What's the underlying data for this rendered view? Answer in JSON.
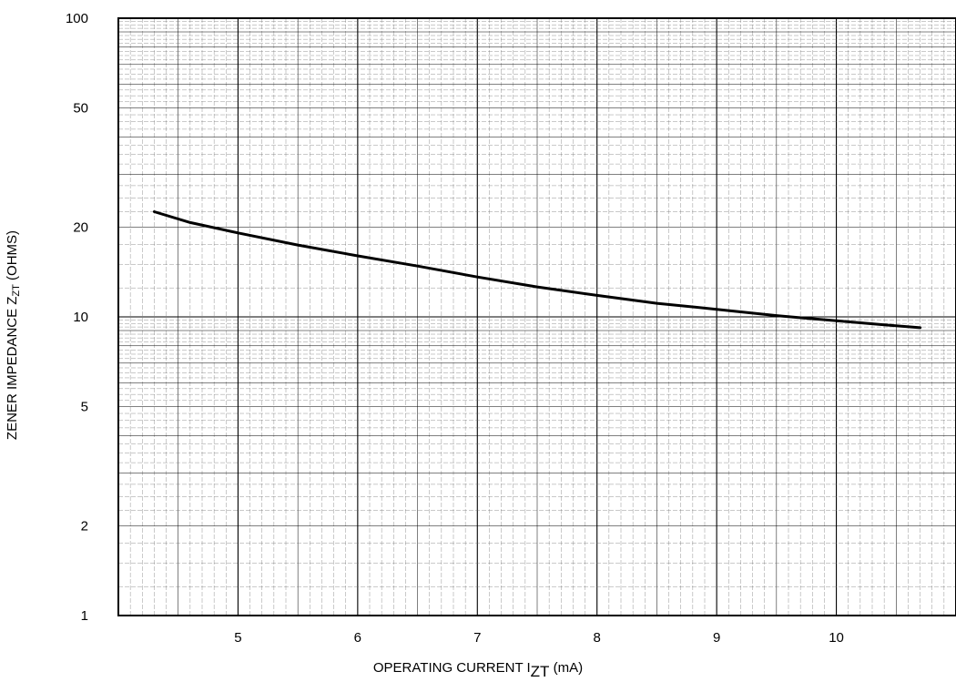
{
  "chart_data": {
    "type": "line",
    "title": "",
    "xlabel": {
      "main": "OPERATING CURRENT I",
      "sub": "ZT",
      "unit": " (mA)"
    },
    "ylabel": {
      "main": "ZENER IMPEDANCE Z",
      "sub": "ZT",
      "unit": " (OHMS)"
    },
    "x_scale": "linear",
    "y_scale": "log",
    "xlim": [
      4,
      11
    ],
    "ylim": [
      1,
      100
    ],
    "x_ticks": [
      5,
      6,
      7,
      8,
      9,
      10
    ],
    "x_tick_labels": [
      "5",
      "6",
      "7",
      "8",
      "9",
      "10"
    ],
    "y_ticks": [
      1,
      2,
      5,
      10,
      20,
      50,
      100
    ],
    "y_tick_labels": [
      "1",
      "2",
      "5",
      "10",
      "20",
      "50",
      "100"
    ],
    "grid": true,
    "legend": "none",
    "series": [
      {
        "color": "#000000",
        "points": [
          [
            4.3,
            22.5
          ],
          [
            4.6,
            20.7
          ],
          [
            5.0,
            19.1
          ],
          [
            5.5,
            17.4
          ],
          [
            6.0,
            16.0
          ],
          [
            6.5,
            14.8
          ],
          [
            7.0,
            13.6
          ],
          [
            7.5,
            12.6
          ],
          [
            8.0,
            11.8
          ],
          [
            8.5,
            11.1
          ],
          [
            9.0,
            10.6
          ],
          [
            9.5,
            10.1
          ],
          [
            10.0,
            9.7
          ],
          [
            10.4,
            9.4
          ],
          [
            10.7,
            9.2
          ]
        ]
      }
    ]
  }
}
